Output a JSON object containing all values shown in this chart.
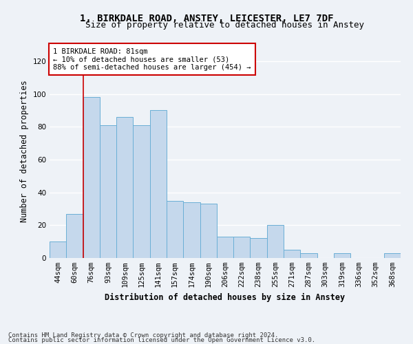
{
  "title_line1": "1, BIRKDALE ROAD, ANSTEY, LEICESTER, LE7 7DF",
  "title_line2": "Size of property relative to detached houses in Anstey",
  "xlabel": "Distribution of detached houses by size in Anstey",
  "ylabel": "Number of detached properties",
  "categories": [
    "44sqm",
    "60sqm",
    "76sqm",
    "93sqm",
    "109sqm",
    "125sqm",
    "141sqm",
    "157sqm",
    "174sqm",
    "190sqm",
    "206sqm",
    "222sqm",
    "238sqm",
    "255sqm",
    "271sqm",
    "287sqm",
    "303sqm",
    "319sqm",
    "336sqm",
    "352sqm",
    "368sqm"
  ],
  "values": [
    10,
    27,
    98,
    81,
    86,
    81,
    90,
    35,
    34,
    33,
    13,
    13,
    12,
    20,
    5,
    3,
    0,
    3,
    0,
    0,
    3
  ],
  "bar_color": "#c5d8ec",
  "bar_edge_color": "#6aafd6",
  "background_color": "#eef2f7",
  "grid_color": "#ffffff",
  "ylim": [
    0,
    130
  ],
  "yticks": [
    0,
    20,
    40,
    60,
    80,
    100,
    120
  ],
  "vline_bin_index": 2,
  "annotation_text": "1 BIRKDALE ROAD: 81sqm\n← 10% of detached houses are smaller (53)\n88% of semi-detached houses are larger (454) →",
  "annotation_box_color": "white",
  "annotation_box_edge_color": "#cc0000",
  "vline_color": "#cc0000",
  "footer_line1": "Contains HM Land Registry data © Crown copyright and database right 2024.",
  "footer_line2": "Contains public sector information licensed under the Open Government Licence v3.0.",
  "title_fontsize": 10,
  "subtitle_fontsize": 9,
  "axis_label_fontsize": 8.5,
  "tick_fontsize": 7.5,
  "annotation_fontsize": 7.5,
  "footer_fontsize": 6.5
}
